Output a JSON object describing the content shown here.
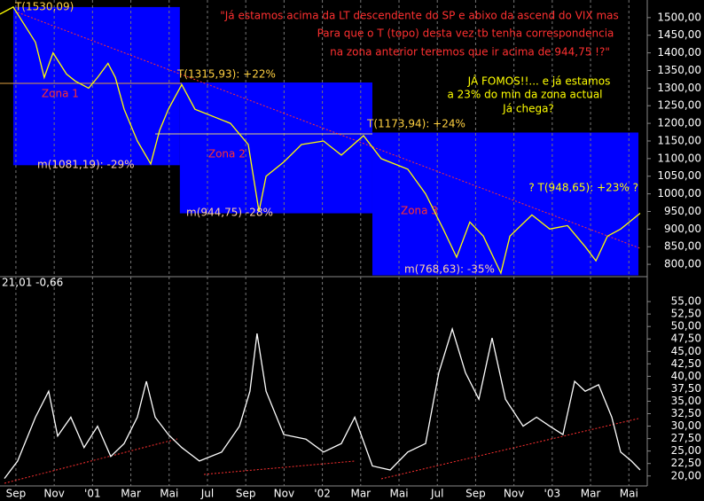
{
  "chart_data": [
    {
      "type": "line",
      "x": [
        -0.83,
        -0.14,
        1.02,
        1.48,
        1.94,
        2.64,
        3.1,
        3.8,
        4.26,
        4.81,
        5.19,
        5.65,
        6.34,
        7.04,
        7.5,
        7.96,
        8.66,
        9.35,
        10.28,
        11.2,
        12.13,
        12.69,
        13.06,
        13.98,
        14.91,
        16.06,
        16.99,
        18.15,
        19.07,
        20.46,
        21.39,
        22.31,
        23.01,
        23.7,
        24.4,
        25.32,
        25.79,
        26.94,
        27.87,
        28.8,
        29.72,
        30.28,
        30.88,
        31.57,
        32.59
      ],
      "series": [
        {
          "color": "#ffff00",
          "values": [
            1510,
            1530,
            1430,
            1330,
            1400,
            1340,
            1320,
            1300,
            1330,
            1370,
            1330,
            1240,
            1150,
            1085,
            1180,
            1240,
            1310,
            1240,
            1220,
            1200,
            1140,
            950,
            1050,
            1090,
            1140,
            1150,
            1110,
            1165,
            1100,
            1070,
            1000,
            900,
            820,
            920,
            880,
            775,
            880,
            940,
            900,
            910,
            850,
            810,
            880,
            900,
            945
          ]
        }
      ],
      "xlim": [
        -0.83,
        32.96
      ],
      "ylim": [
        765,
        1550
      ],
      "yticks": [
        {
          "value": 800,
          "label": "800,00"
        },
        {
          "value": 850,
          "label": "850,00"
        },
        {
          "value": 900,
          "label": "900,00"
        },
        {
          "value": 950,
          "label": "950,00"
        },
        {
          "value": 1000,
          "label": "1000,00"
        },
        {
          "value": 1050,
          "label": "1050,00"
        },
        {
          "value": 1100,
          "label": "1100,00"
        },
        {
          "value": 1150,
          "label": "1150,00"
        },
        {
          "value": 1200,
          "label": "1200,00"
        },
        {
          "value": 1250,
          "label": "1250,00"
        },
        {
          "value": 1300,
          "label": "1300,00"
        },
        {
          "value": 1350,
          "label": "1350,00"
        },
        {
          "value": 1400,
          "label": "1400,00"
        },
        {
          "value": 1450,
          "label": "1450,00"
        },
        {
          "value": 1500,
          "label": "1500,00"
        }
      ],
      "zones": [
        {
          "label": "Zona 1",
          "x": [
            -0.14,
            8.56
          ],
          "range": [
            1081.19,
            1530.09
          ],
          "color": "#0000ff"
        },
        {
          "label": "Zona 2",
          "x": [
            8.56,
            18.61
          ],
          "range": [
            944.75,
            1315.93
          ],
          "color": "#0000ff"
        },
        {
          "label": "Zona 3",
          "x": [
            18.61,
            32.5
          ],
          "range": [
            768.63,
            1173.94
          ],
          "color": "#0000ff"
        }
      ],
      "annotations": [
        "T(1530,09)",
        "T(1315,93): +22%",
        "T(1173,94): +24%",
        "m(1081,19): -29%",
        "m(944,75) -28%",
        "m(768,63): -35%",
        "? T(948,65): +23% ?",
        "\"Já estamos acima da LT descendente do SP e abixo da ascend do VIX mas",
        "Para que o T (topo) desta vez tb tenha correspondencia",
        "na zona anterior teremos que ir acima de 944,75  !?\"",
        "JÁ FOMOS!!... e já estamos",
        "a 23% do min da zona actual",
        "Já chega?"
      ]
    },
    {
      "type": "line",
      "label": "21,01 -0,66",
      "x": [
        -0.6,
        0.09,
        1.02,
        1.71,
        2.18,
        2.87,
        3.56,
        4.26,
        4.95,
        5.65,
        6.34,
        6.81,
        7.27,
        7.96,
        8.66,
        9.58,
        10.74,
        11.67,
        12.22,
        12.59,
        13.06,
        13.98,
        15.14,
        16.06,
        16.99,
        17.69,
        18.61,
        19.54,
        20.46,
        21.39,
        22.08,
        22.78,
        23.47,
        24.17,
        24.86,
        25.56,
        26.48,
        27.18,
        27.87,
        28.56,
        29.17,
        29.72,
        30.42,
        31.11,
        31.57,
        32.13,
        32.59
      ],
      "series": [
        {
          "color": "#ffffff",
          "values": [
            19.5,
            23,
            31.8,
            37,
            28,
            31.8,
            25.7,
            30,
            23.9,
            26.5,
            31.8,
            39,
            31.8,
            28.3,
            25.7,
            23,
            24.8,
            30,
            37,
            48.6,
            37,
            28.3,
            27.4,
            24.8,
            26.5,
            31.8,
            22,
            21.2,
            24.8,
            26.5,
            40.7,
            49.5,
            40.7,
            35.4,
            47.7,
            35.4,
            30,
            31.8,
            30,
            28.3,
            39,
            37,
            38.3,
            31.8,
            24.8,
            23,
            21.2
          ]
        }
      ],
      "xlim": [
        -0.83,
        32.96
      ],
      "ylim": [
        18,
        60
      ],
      "xticks": [
        {
          "value": 0,
          "label": "Sep"
        },
        {
          "value": 2,
          "label": "Nov"
        },
        {
          "value": 4,
          "label": "'01"
        },
        {
          "value": 6,
          "label": "Mar"
        },
        {
          "value": 8,
          "label": "Mai"
        },
        {
          "value": 10,
          "label": "Jul"
        },
        {
          "value": 12,
          "label": "Sep"
        },
        {
          "value": 14,
          "label": "Nov"
        },
        {
          "value": 16,
          "label": "'02"
        },
        {
          "value": 18,
          "label": "Mar"
        },
        {
          "value": 20,
          "label": "Mai"
        },
        {
          "value": 22,
          "label": "Jul"
        },
        {
          "value": 24,
          "label": "Sep"
        },
        {
          "value": 26,
          "label": "Nov"
        },
        {
          "value": 28,
          "label": "'03"
        },
        {
          "value": 30,
          "label": "Mar"
        },
        {
          "value": 32,
          "label": "Mai"
        }
      ],
      "yticks": [
        {
          "value": 20,
          "label": "20,00"
        },
        {
          "value": 22.5,
          "label": "22,50"
        },
        {
          "value": 25,
          "label": "25,00"
        },
        {
          "value": 27.5,
          "label": "27,50"
        },
        {
          "value": 30,
          "label": "30,00"
        },
        {
          "value": 32.5,
          "label": "32,50"
        },
        {
          "value": 35,
          "label": "35,00"
        },
        {
          "value": 37.5,
          "label": "37,50"
        },
        {
          "value": 40,
          "label": "40,00"
        },
        {
          "value": 42.5,
          "label": "42,50"
        },
        {
          "value": 45,
          "label": "45,00"
        },
        {
          "value": 47.5,
          "label": "47,50"
        },
        {
          "value": 50,
          "label": "50,00"
        },
        {
          "value": 52.5,
          "label": "52,50"
        },
        {
          "value": 55,
          "label": "55,00"
        }
      ]
    }
  ]
}
